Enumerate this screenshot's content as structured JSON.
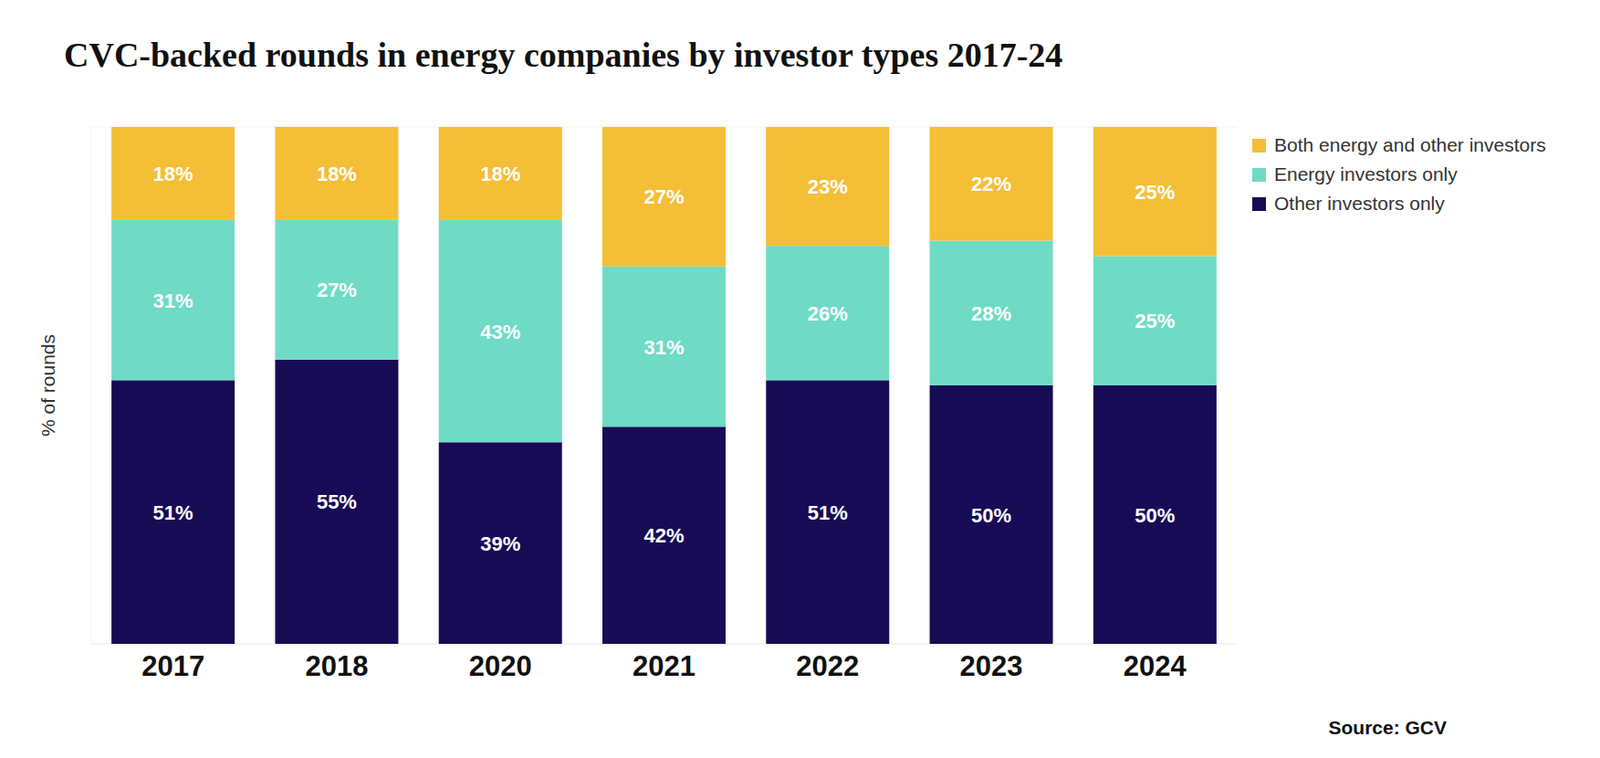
{
  "chart_data": {
    "type": "bar",
    "title": "CVC-backed rounds in energy companies by investor types 2017-24",
    "y_label": "% of rounds",
    "source": "Source: GCV",
    "categories": [
      "2017",
      "2018",
      "2020",
      "2021",
      "2022",
      "2023",
      "2024"
    ],
    "series": [
      {
        "name": "Other investors only",
        "color": "#170b55",
        "values": [
          51,
          55,
          39,
          42,
          51,
          50,
          50
        ],
        "value_labels": [
          "51%",
          "55%",
          "39%",
          "42%",
          "51%",
          "50%",
          "50%"
        ]
      },
      {
        "name": "Energy investors only",
        "color": "#6fdbc5",
        "values": [
          31,
          27,
          43,
          31,
          26,
          28,
          25
        ],
        "value_labels": [
          "31%",
          "27%",
          "43%",
          "31%",
          "26%",
          "28%",
          "25%"
        ]
      },
      {
        "name": "Both energy and other investors",
        "color": "#f5be37",
        "values": [
          18,
          18,
          18,
          27,
          23,
          22,
          25
        ],
        "value_labels": [
          "18%",
          "18%",
          "18%",
          "27%",
          "23%",
          "22%",
          "25%"
        ]
      }
    ],
    "ylim": [
      0,
      100
    ],
    "stacked": true,
    "data_labels": true,
    "tick_labels": "x",
    "legend": "top-right",
    "grid": false
  }
}
